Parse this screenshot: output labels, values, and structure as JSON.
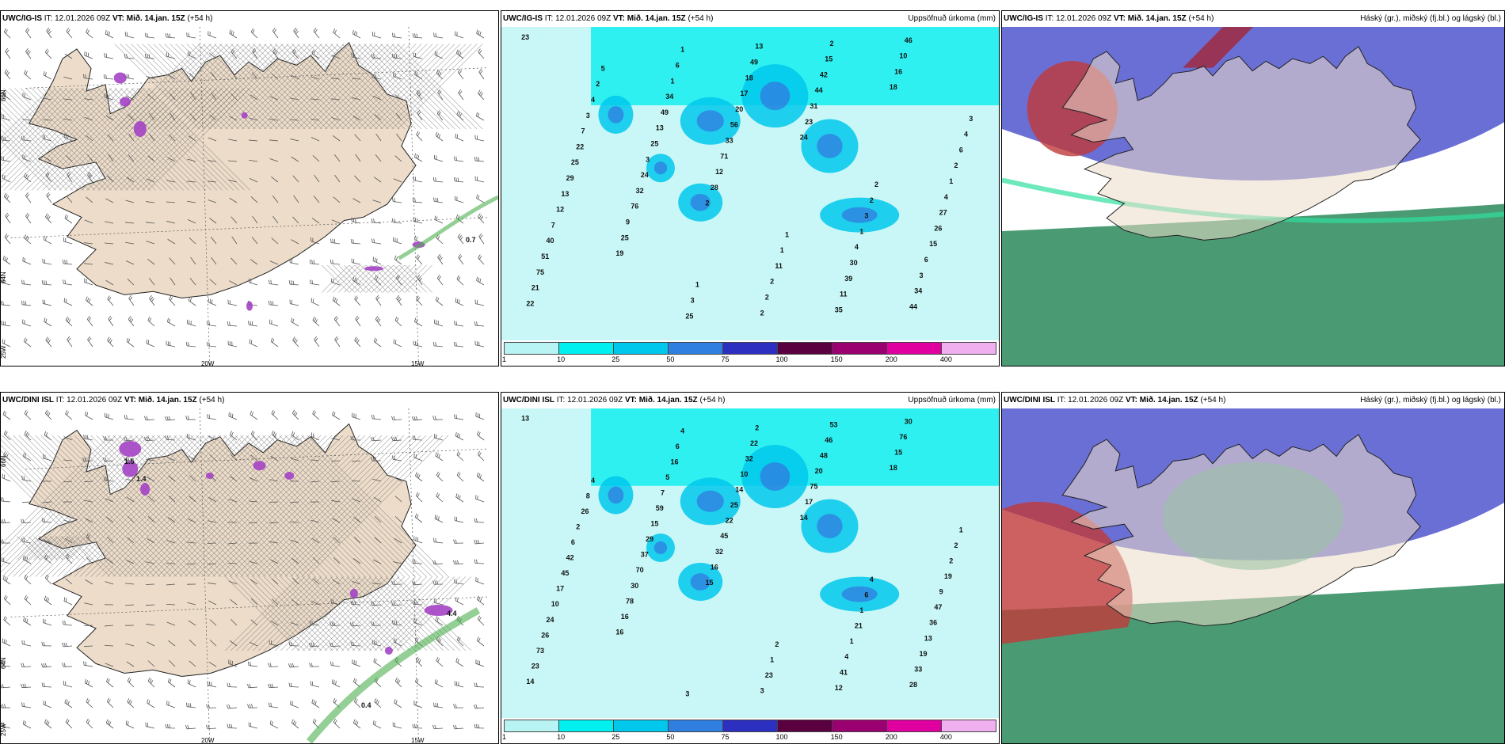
{
  "panels": [
    {
      "id": "tl",
      "model": "UWC/IG-IS",
      "it": "IT: 12.01.2026 09Z",
      "vt_label": "VT:",
      "vt": "Mið. 14.jan. 15Z",
      "lead": "(+54 h)",
      "right": ""
    },
    {
      "id": "tm",
      "model": "UWC/IG-IS",
      "it": "IT: 12.01.2026 09Z",
      "vt_label": "VT:",
      "vt": "Mið. 14.jan. 15Z",
      "lead": "(+54 h)",
      "right": "Uppsöfnuð úrkoma (mm)"
    },
    {
      "id": "tr",
      "model": "UWC/IG-IS",
      "it": "IT: 12.01.2026 09Z",
      "vt_label": "VT:",
      "vt": "Mið. 14.jan. 15Z",
      "lead": "(+54 h)",
      "right": "Háský (gr.), miðský (fj.bl.) og lágský (bl.)"
    },
    {
      "id": "bl",
      "model": "UWC/DINI ISL",
      "it": "IT: 12.01.2026 09Z",
      "vt_label": "VT:",
      "vt": "Mið. 14.jan. 15Z",
      "lead": "(+54 h)",
      "right": ""
    },
    {
      "id": "bm",
      "model": "UWC/DINI ISL",
      "it": "IT: 12.01.2026 09Z",
      "vt_label": "VT:",
      "vt": "Mið. 14.jan. 15Z",
      "lead": "(+54 h)",
      "right": "Uppsöfnuð úrkoma (mm)"
    },
    {
      "id": "br",
      "model": "UWC/DINI ISL",
      "it": "IT: 12.01.2026 09Z",
      "vt_label": "VT:",
      "vt": "Mið. 14.jan. 15Z",
      "lead": "(+54 h)",
      "right": "Háský (gr.), miðský (fj.bl.) og lágský (bl.)"
    }
  ],
  "axis_labels": {
    "lat_66": "66N",
    "lat_64": "64N",
    "lon_20": "20W",
    "lon_15": "15W",
    "lon_25": "25W"
  },
  "colorbar": {
    "ticks": [
      "1",
      "10",
      "25",
      "50",
      "75",
      "100",
      "150",
      "200",
      "400"
    ],
    "colors": [
      "#b8f4f4",
      "#00f0f0",
      "#00c8ec",
      "#2f7fe0",
      "#2d2fc0",
      "#5a0040",
      "#9a0070",
      "#e000a0",
      "#f0b0f0"
    ]
  },
  "precip_labels_top": [
    "23",
    "2",
    "18",
    "19",
    "24",
    "22",
    "28",
    "16",
    "25",
    "23",
    "21",
    "12",
    "10",
    "9",
    "31",
    "75",
    "71",
    "46",
    "76",
    "44",
    "51",
    "33",
    "44",
    "32",
    "42",
    "40",
    "56",
    "34",
    "24",
    "15",
    "7",
    "20",
    "3",
    "3",
    "2",
    "12",
    "17",
    "6",
    "25",
    "35",
    "13",
    "18",
    "15",
    "13",
    "11",
    "29",
    "49",
    "26",
    "49",
    "39",
    "25",
    "13",
    "27",
    "34",
    "30",
    "22",
    "2",
    "4",
    "1",
    "4",
    "7",
    "2",
    "1",
    "6",
    "1",
    "3",
    "2",
    "2",
    "1",
    "3",
    "4",
    "11",
    "6",
    "25",
    "2",
    "2",
    "1",
    "4",
    "3",
    "2",
    "5",
    "1",
    "3",
    "1"
  ],
  "precip_labels_bottom": [
    "13",
    "15",
    "18",
    "16",
    "14",
    "14",
    "16",
    "15",
    "16",
    "17",
    "23",
    "32",
    "76",
    "78",
    "75",
    "73",
    "45",
    "30",
    "30",
    "20",
    "26",
    "22",
    "28",
    "70",
    "48",
    "24",
    "25",
    "33",
    "37",
    "46",
    "10",
    "14",
    "19",
    "29",
    "53",
    "17",
    "10",
    "13",
    "15",
    "12",
    "45",
    "32",
    "36",
    "59",
    "41",
    "42",
    "22",
    "47",
    "7",
    "4",
    "6",
    "2",
    "9",
    "5",
    "1",
    "2",
    "3",
    "19",
    "16",
    "21",
    "26",
    "23",
    "2",
    "6",
    "1",
    "8",
    "1",
    "2",
    "4",
    "6",
    "4",
    "2",
    "1",
    "3",
    "4"
  ],
  "hatch_values_top": [
    "0.7"
  ],
  "hatch_values_bottom": [
    "1.5",
    "1.4",
    "0.4",
    "4.4"
  ],
  "colors": {
    "land": "#ecdcc9",
    "sea": "#ffffff",
    "bounds": "#222222",
    "cloud_high": "#ffffff",
    "cloud_mid": "#5a5fd0",
    "cloud_low": "#2a8a5a",
    "cloud_red": "#c03a3a"
  }
}
